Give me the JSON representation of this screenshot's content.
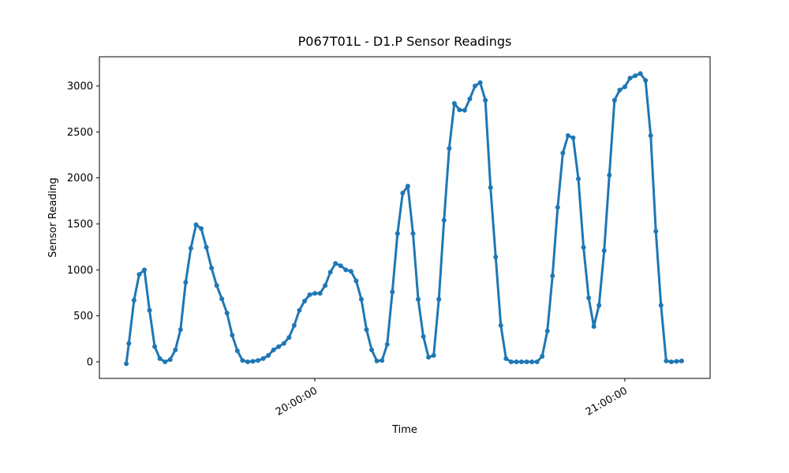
{
  "chart_data": {
    "type": "line",
    "title": "P067T01L - D1.P Sensor Readings",
    "x_label": "Time",
    "y_label": "Sensor Reading",
    "color": "#1f77b4",
    "x": [
      "19:23:30",
      "19:24:00",
      "19:25:00",
      "19:26:00",
      "19:27:00",
      "19:28:00",
      "19:29:00",
      "19:30:00",
      "19:31:00",
      "19:32:00",
      "19:33:00",
      "19:34:00",
      "19:35:00",
      "19:36:00",
      "19:37:00",
      "19:38:00",
      "19:39:00",
      "19:40:00",
      "19:41:00",
      "19:42:00",
      "19:43:00",
      "19:44:00",
      "19:45:00",
      "19:46:00",
      "19:47:00",
      "19:48:00",
      "19:49:00",
      "19:50:00",
      "19:51:00",
      "19:52:00",
      "19:53:00",
      "19:54:00",
      "19:55:00",
      "19:56:00",
      "19:57:00",
      "19:58:00",
      "19:59:00",
      "20:00:00",
      "20:01:00",
      "20:02:00",
      "20:03:00",
      "20:04:00",
      "20:05:00",
      "20:06:00",
      "20:07:00",
      "20:08:00",
      "20:09:00",
      "20:10:00",
      "20:11:00",
      "20:12:00",
      "20:13:00",
      "20:14:00",
      "20:15:00",
      "20:16:00",
      "20:17:00",
      "20:18:00",
      "20:19:00",
      "20:20:00",
      "20:21:00",
      "20:22:00",
      "20:23:00",
      "20:24:00",
      "20:25:00",
      "20:26:00",
      "20:27:00",
      "20:28:00",
      "20:29:00",
      "20:30:00",
      "20:31:00",
      "20:32:00",
      "20:33:00",
      "20:34:00",
      "20:35:00",
      "20:36:00",
      "20:37:00",
      "20:38:00",
      "20:39:00",
      "20:40:00",
      "20:41:00",
      "20:42:00",
      "20:43:00",
      "20:44:00",
      "20:45:00",
      "20:46:00",
      "20:47:00",
      "20:48:00",
      "20:49:00",
      "20:50:00",
      "20:51:00",
      "20:52:00",
      "20:53:00",
      "20:54:00",
      "20:55:00",
      "20:56:00",
      "20:57:00",
      "20:58:00",
      "20:59:00",
      "21:00:00",
      "21:01:00",
      "21:02:00",
      "21:03:00",
      "21:04:00",
      "21:05:00",
      "21:06:00",
      "21:07:00",
      "21:08:00",
      "21:09:00",
      "21:10:00",
      "21:11:00"
    ],
    "values": [
      -20,
      200,
      670,
      950,
      1000,
      560,
      165,
      35,
      0,
      25,
      130,
      350,
      865,
      1235,
      1490,
      1450,
      1245,
      1020,
      830,
      685,
      530,
      290,
      120,
      15,
      0,
      5,
      15,
      35,
      70,
      130,
      165,
      200,
      265,
      395,
      560,
      660,
      730,
      745,
      745,
      830,
      975,
      1070,
      1045,
      1000,
      985,
      880,
      680,
      350,
      130,
      10,
      15,
      190,
      760,
      1395,
      1835,
      1910,
      1395,
      680,
      275,
      50,
      70,
      680,
      1540,
      2320,
      2810,
      2740,
      2735,
      2860,
      3000,
      3035,
      2845,
      1895,
      1140,
      395,
      35,
      0,
      0,
      0,
      0,
      0,
      0,
      60,
      335,
      935,
      1680,
      2270,
      2460,
      2435,
      1990,
      1245,
      695,
      385,
      615,
      1210,
      2030,
      2845,
      2955,
      2990,
      3085,
      3110,
      3135,
      3060,
      2460,
      1420,
      615,
      10,
      0,
      5,
      10
    ],
    "xlim": [
      "19:18:18",
      "21:16:30"
    ],
    "xticks": [
      "20:00:00",
      "21:00:00"
    ],
    "ylim": [
      -180,
      3317
    ],
    "yticks": [
      0,
      500,
      1000,
      1500,
      2000,
      2500,
      3000
    ]
  }
}
